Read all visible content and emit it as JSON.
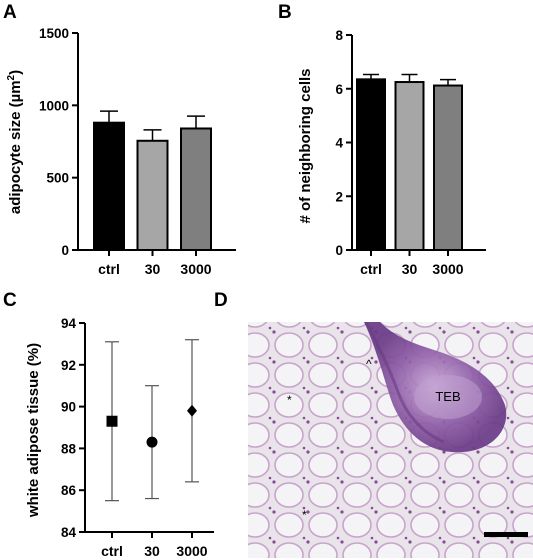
{
  "panels": {
    "a": "A",
    "b": "B",
    "c": "C",
    "d": "D"
  },
  "colors": {
    "ctrl": "#000000",
    "30": "#a6a6a6",
    "3000": "#7f7f7f"
  },
  "chart_data": [
    {
      "type": "bar",
      "panel": "A",
      "categories": [
        "ctrl",
        "30",
        "3000"
      ],
      "values": [
        880,
        755,
        840
      ],
      "errors": [
        80,
        75,
        85
      ],
      "ylabel": "adipocyte size (µm²)",
      "ylabel_main": "adipocyte size (µm",
      "ylabel_sup": "2",
      "ylabel_end": ")",
      "ylim": [
        0,
        1500
      ],
      "yticks": [
        "0",
        "500",
        "1000",
        "1500"
      ],
      "grid": false
    },
    {
      "type": "bar",
      "panel": "B",
      "categories": [
        "ctrl",
        "30",
        "3000"
      ],
      "values": [
        6.35,
        6.25,
        6.12
      ],
      "errors": [
        0.18,
        0.28,
        0.22
      ],
      "ylabel": "# of neighboring cells",
      "ylim": [
        0,
        8
      ],
      "yticks": [
        "0",
        "2",
        "4",
        "6",
        "8"
      ],
      "grid": false
    },
    {
      "type": "scatter",
      "panel": "C",
      "categories": [
        "ctrl",
        "30",
        "3000"
      ],
      "values": [
        89.3,
        88.3,
        89.8
      ],
      "lower": [
        85.5,
        85.6,
        86.4
      ],
      "upper": [
        93.1,
        91.0,
        93.2
      ],
      "markers": [
        "square",
        "circle",
        "diamond"
      ],
      "ylabel": "white adipose tissue (%)",
      "ylim": [
        84,
        94
      ],
      "yticks": [
        "84",
        "86",
        "88",
        "90",
        "92",
        "94"
      ],
      "grid": false
    }
  ],
  "micrograph": {
    "teb_label": "TEB",
    "asterisk_1": "*",
    "asterisk_2": "*",
    "caret": "^"
  }
}
